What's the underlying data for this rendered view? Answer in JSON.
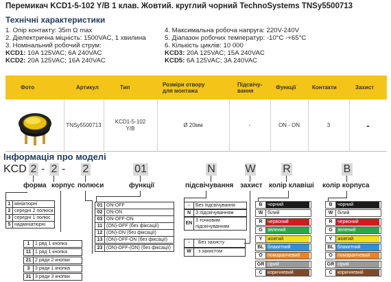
{
  "title": "Перемикач KCD1-5-102 Y/B 1 клав. Жовтий.  круглий чорний TechnoSystems TNSy5500713",
  "specs_heading": "Технічні характеристики",
  "specs_left": [
    "1. Опір контакту: 35m Ω  max",
    "2. Діелектрична міцність:  1500VAC, 1 хвилина",
    "3. Номінальний робочий струм:"
  ],
  "specs_left_kcd1_label": "KCD1:",
  "specs_left_kcd1_value": " 10A 125VAC; 6A 240VAC",
  "specs_left_kcd2_label": "KCD2:",
  "specs_left_kcd2_value": " 20A 125VAC; 16A 240VAC",
  "specs_right": [
    "4. Максимальна робоча напруга: 220V-240V",
    "5. Діапазон робочих температур: -10°C -+65°C",
    "6. Кількість циклів: 10 000"
  ],
  "specs_right_kcd3_label": "KCD3:",
  "specs_right_kcd3_value": " 20A 125VAC; 15A 240VAC",
  "specs_right_kcd5_label": "KCD5:",
  "specs_right_kcd5_value": " 6A 125VAC; 3A 240VAC",
  "table": {
    "headers": [
      "Фото",
      "Артикул",
      "Тип",
      "Розміри отвору для монтажа",
      "Підсвічу-вання",
      "Функції",
      "Контакти",
      "Захист"
    ],
    "row": {
      "article": "TNSy5500713",
      "type_line1": "KCD1-5-102",
      "type_line2": "Y/B",
      "size": "Ø 20мм",
      "backlight": "-",
      "functions": "ON - ON",
      "contacts": "3",
      "protection": "-"
    }
  },
  "model_info": {
    "heading": "Інформація про моделі",
    "code_prefix": "KCD",
    "code_parts": [
      "2",
      "2",
      "2",
      "01",
      "N",
      "W",
      "R",
      "B"
    ],
    "dash": "-",
    "labels": {
      "form": "форма",
      "body": "корпус",
      "poles": "полюси",
      "functions": "функції",
      "backlight": "підсвічування",
      "protection": "захист",
      "key_color": "колір клавіші",
      "body_color": "колір корпуса"
    },
    "form_list": [
      {
        "k": "1",
        "v": "мініатюрні"
      },
      {
        "k": "2",
        "v": "середні 2 полюси"
      },
      {
        "k": "3",
        "v": "середні 1 полюс"
      },
      {
        "k": "5",
        "v": "надмініатюрні"
      }
    ],
    "rows_list": [
      {
        "k": "1",
        "v": "1 ряд 1 кнопка"
      },
      {
        "k": "11",
        "v": "1 ряд 1 кнопка"
      },
      {
        "k": "21",
        "v": "2 ряди 2 кнопки"
      },
      {
        "k": "3",
        "v": "3 ряди 1 кнопка"
      },
      {
        "k": "31",
        "v": "3 ряди 3 кнопки"
      }
    ],
    "functions_list": [
      {
        "k": "01",
        "v": "ON-OFF"
      },
      {
        "k": "02",
        "v": "ON-ON"
      },
      {
        "k": "03",
        "v": "ON-OFF-ON"
      },
      {
        "k": "11",
        "v": "(ON)-OFF (без фіксації)"
      },
      {
        "k": "12",
        "v": "(ON)-ON (без фіксації)"
      },
      {
        "k": "13",
        "v": "(ON)-OFF-ON (без фіксації)"
      },
      {
        "k": "23",
        "v": "(ON)-OFF-(ON) (без фіксації)"
      }
    ],
    "backlight_list": [
      {
        "k": "-",
        "v": "Без підсвічування"
      },
      {
        "k": "N",
        "v": "З підсвічуванням"
      },
      {
        "k": "EN",
        "v": "3 точковим підсвічуванням"
      }
    ],
    "protection_list": [
      {
        "k": "-",
        "v": "Без захисту"
      },
      {
        "k": "W",
        "v": "з захистом"
      }
    ],
    "key_colors": [
      {
        "k": "B",
        "v": "чорний",
        "bg": "#1a1a1a",
        "fg": "#ffffff"
      },
      {
        "k": "W",
        "v": "білий",
        "bg": "#ffffff",
        "fg": "#222222"
      },
      {
        "k": "R",
        "v": "червоний",
        "bg": "#d01c1c",
        "fg": "#ffffff"
      },
      {
        "k": "G",
        "v": "зелений",
        "bg": "#2ba84a",
        "fg": "#ffffff"
      },
      {
        "k": "Y",
        "v": "жовтий",
        "bg": "#f4e11a",
        "fg": "#222222"
      },
      {
        "k": "BL",
        "v": "блакитний",
        "bg": "#2f8fd8",
        "fg": "#ffffff"
      },
      {
        "k": "O",
        "v": "помаранчевий",
        "bg": "#f0821c",
        "fg": "#ffffff"
      },
      {
        "k": "GR",
        "v": "сірий",
        "bg": "#9a9a9a",
        "fg": "#ffffff"
      },
      {
        "k": "C",
        "v": "коричневий",
        "bg": "#7a4a2a",
        "fg": "#ffffff"
      }
    ],
    "body_colors": [
      {
        "k": "B",
        "v": "чорний",
        "bg": "#1a1a1a",
        "fg": "#ffffff"
      },
      {
        "k": "W",
        "v": "білий",
        "bg": "#ffffff",
        "fg": "#222222"
      },
      {
        "k": "R",
        "v": "червоний",
        "bg": "#d01c1c",
        "fg": "#ffffff"
      },
      {
        "k": "G",
        "v": "зелений",
        "bg": "#2ba84a",
        "fg": "#ffffff"
      },
      {
        "k": "Y",
        "v": "жовтий",
        "bg": "#f4e11a",
        "fg": "#222222"
      },
      {
        "k": "BL",
        "v": "блакитний",
        "bg": "#2f8fd8",
        "fg": "#ffffff"
      },
      {
        "k": "O",
        "v": "помаранчевий",
        "bg": "#f0821c",
        "fg": "#ffffff"
      },
      {
        "k": "GR",
        "v": "сірий",
        "bg": "#9a9a9a",
        "fg": "#ffffff"
      },
      {
        "k": "C",
        "v": "коричневий",
        "bg": "#7a4a2a",
        "fg": "#ffffff"
      }
    ]
  }
}
